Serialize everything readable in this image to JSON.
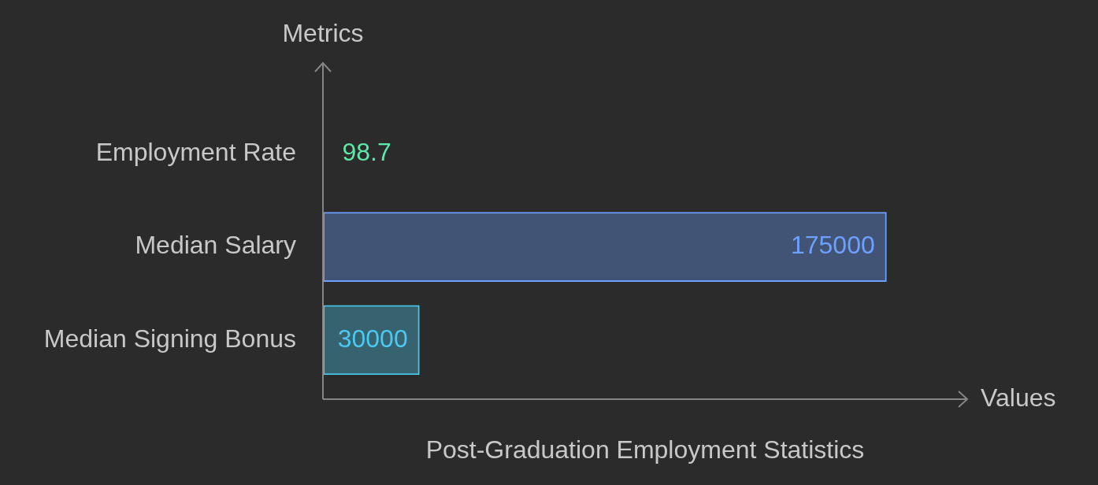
{
  "chart_data": {
    "type": "bar",
    "orientation": "horizontal",
    "title": "Post-Graduation Employment Statistics",
    "x_label": "Values",
    "y_label": "Metrics",
    "categories": [
      "Employment Rate",
      "Median Salary",
      "Median Signing Bonus"
    ],
    "values": [
      98.7,
      175000,
      30000
    ],
    "colors": [
      "#5ee8a8",
      "#6ea0ff",
      "#4cc9f0"
    ],
    "xlim": [
      0,
      200000
    ],
    "grid": false,
    "data_labels": true,
    "tick_labels": "y"
  }
}
